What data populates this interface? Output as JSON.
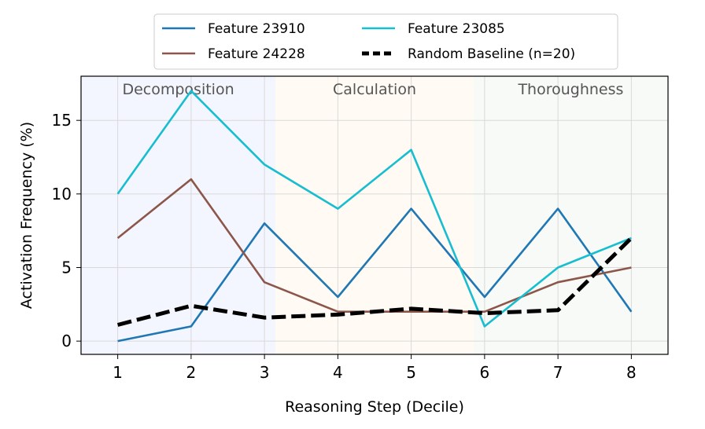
{
  "chart_data": {
    "type": "line",
    "xlabel": "Reasoning Step (Decile)",
    "ylabel": "Activation Frequency (%)",
    "x": [
      1,
      2,
      3,
      4,
      5,
      6,
      7,
      8
    ],
    "xlim": [
      0.5,
      8.5
    ],
    "ylim": [
      -0.9,
      18
    ],
    "xticks": [
      "1",
      "2",
      "3",
      "4",
      "5",
      "6",
      "7",
      "8"
    ],
    "yticks": [
      0,
      5,
      10,
      15
    ],
    "grid": true,
    "legend_position": "top-center",
    "regions": [
      {
        "label": "Decomposition",
        "start": 0.5,
        "end": 3.15,
        "color": "#f4f6ff"
      },
      {
        "label": "Calculation",
        "start": 3.15,
        "end": 5.85,
        "color": "#fffaf3"
      },
      {
        "label": "Thoroughness",
        "start": 5.85,
        "end": 8.5,
        "color": "#f7faf7"
      }
    ],
    "series": [
      {
        "name": "Feature 23910",
        "color": "#1f77b4",
        "dashed": false,
        "values": [
          0,
          1,
          8,
          3,
          9,
          3,
          9,
          2
        ]
      },
      {
        "name": "Feature 24228",
        "color": "#8c564b",
        "dashed": false,
        "values": [
          7,
          11,
          4,
          2,
          2,
          2,
          4,
          5
        ]
      },
      {
        "name": "Feature 23085",
        "color": "#17becf",
        "dashed": false,
        "values": [
          10,
          17,
          12,
          9,
          13,
          1,
          5,
          7
        ]
      },
      {
        "name": "Random Baseline (n=20)",
        "color": "#000000",
        "dashed": true,
        "values": [
          1.1,
          2.4,
          1.6,
          1.8,
          2.2,
          1.9,
          2.1,
          7
        ]
      }
    ]
  }
}
